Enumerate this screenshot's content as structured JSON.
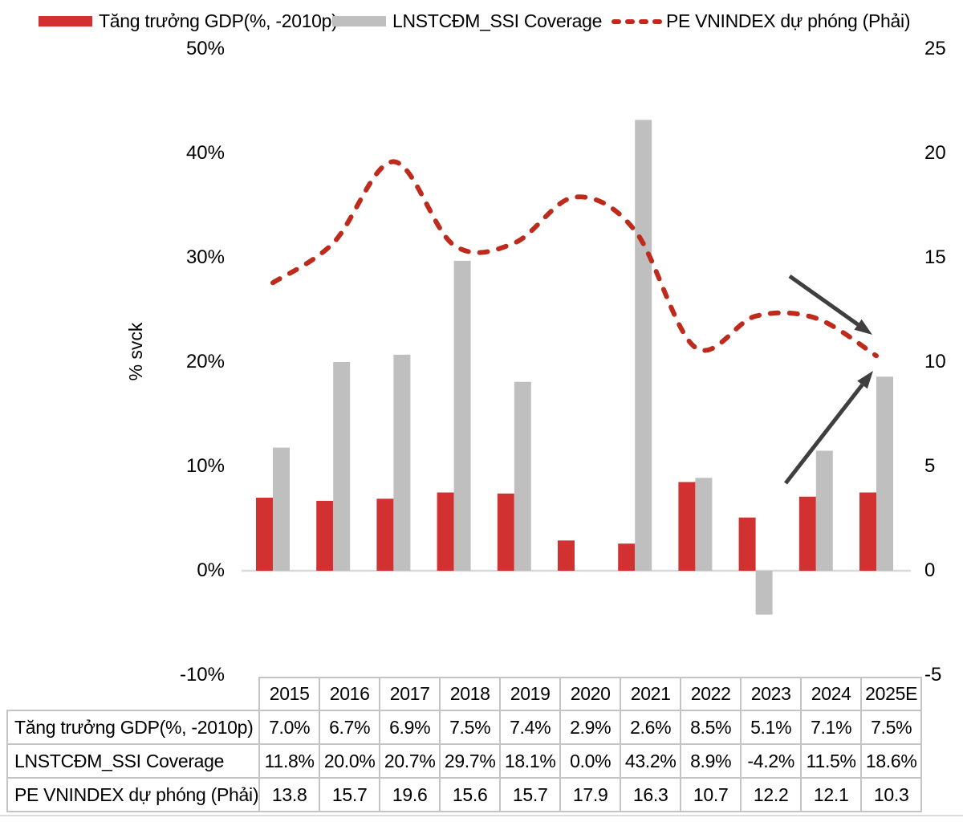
{
  "legend": {
    "items": [
      {
        "label": "Tăng trưởng GDP(%, -2010p)",
        "swatch": "rect",
        "color": "#D23131"
      },
      {
        "label": "LNSTCĐM_SSI Coverage",
        "swatch": "rect",
        "color": "#BFBFBF"
      },
      {
        "label": "PE VNINDEX dự phóng (Phải)",
        "swatch": "dashes",
        "color": "#BE2A1C"
      }
    ]
  },
  "axes": {
    "left": {
      "title": "% svck",
      "ticks": [
        "50%",
        "40%",
        "30%",
        "20%",
        "10%",
        "0%",
        "-10%"
      ],
      "range": [
        -10,
        50
      ]
    },
    "right": {
      "ticks": [
        "25",
        "20",
        "15",
        "10",
        "5",
        "0",
        "-5"
      ],
      "range": [
        -5,
        25
      ]
    }
  },
  "chart_data": {
    "type": "combo",
    "categories": [
      "2015",
      "2016",
      "2017",
      "2018",
      "2019",
      "2020",
      "2021",
      "2022",
      "2023",
      "2024",
      "2025E"
    ],
    "series": [
      {
        "name": "Tăng trưởng GDP(%, -2010p)",
        "type": "bar",
        "axis": "left",
        "unit": "%",
        "color": "#D23131",
        "values": [
          7.0,
          6.7,
          6.9,
          7.5,
          7.4,
          2.9,
          2.6,
          8.5,
          5.1,
          7.1,
          7.5
        ]
      },
      {
        "name": "LNSTCĐM_SSI Coverage",
        "type": "bar",
        "axis": "left",
        "unit": "%",
        "color": "#BFBFBF",
        "values": [
          11.8,
          20.0,
          20.7,
          29.7,
          18.1,
          0.0,
          43.2,
          8.9,
          -4.2,
          11.5,
          18.6
        ]
      },
      {
        "name": "PE VNINDEX dự phóng (Phải)",
        "type": "line",
        "style": "dashed",
        "smooth": true,
        "axis": "right",
        "color": "#BE2A1C",
        "values": [
          13.8,
          15.7,
          19.6,
          15.6,
          15.7,
          17.9,
          16.3,
          10.7,
          12.2,
          12.1,
          10.3
        ]
      }
    ],
    "left_ylim": [
      -10,
      50
    ],
    "right_ylim": [
      -5,
      25
    ],
    "grid": false,
    "legend_position": "top",
    "annotations": [
      {
        "type": "arrow",
        "direction": "down-right",
        "target": "PE VNINDEX dự phóng (Phải)"
      },
      {
        "type": "arrow",
        "direction": "up-right",
        "target": "LNSTCĐM_SSI Coverage"
      }
    ]
  },
  "table": {
    "corner": "",
    "col_headers": [
      "2015",
      "2016",
      "2017",
      "2018",
      "2019",
      "2020",
      "2021",
      "2022",
      "2023",
      "2024",
      "2025E"
    ],
    "rows": [
      {
        "label": "Tăng trưởng GDP(%, -2010p)",
        "values": [
          "7.0%",
          "6.7%",
          "6.9%",
          "7.5%",
          "7.4%",
          "2.9%",
          "2.6%",
          "8.5%",
          "5.1%",
          "7.1%",
          "7.5%"
        ]
      },
      {
        "label": "LNSTCĐM_SSI Coverage",
        "values": [
          "11.8%",
          "20.0%",
          "20.7%",
          "29.7%",
          "18.1%",
          "0.0%",
          "43.2%",
          "8.9%",
          "-4.2%",
          "11.5%",
          "18.6%"
        ]
      },
      {
        "label": "PE VNINDEX dự phóng (Phải)",
        "values": [
          "13.8",
          "15.7",
          "19.6",
          "15.6",
          "15.7",
          "17.9",
          "16.3",
          "10.7",
          "12.2",
          "12.1",
          "10.3"
        ]
      }
    ]
  },
  "colors": {
    "gdp_bar": "#D23131",
    "coverage_bar": "#BFBFBF",
    "pe_line": "#BE2A1C",
    "arrow": "#3F3F3F",
    "zero_axis_line": "#D9D9D9",
    "table_border": "#C4C4C4",
    "text": "#000000"
  }
}
